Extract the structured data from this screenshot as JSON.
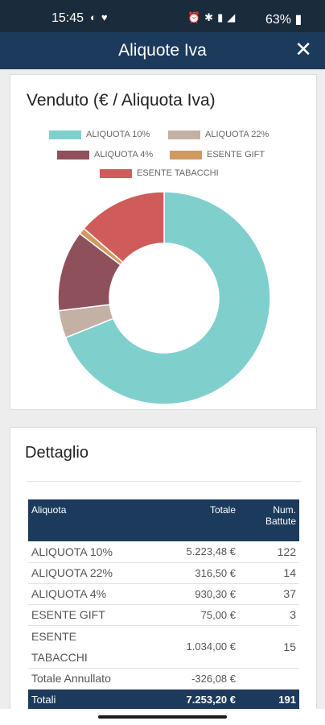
{
  "status": {
    "time": "15:45",
    "battery": "63%"
  },
  "header": {
    "title": "Aliquote Iva",
    "close_icon": "close-icon"
  },
  "chart_data": {
    "type": "pie",
    "donut": true,
    "title": "Venduto (€ / Aliquota Iva)",
    "legend_placement": "top",
    "categories": [
      "ALIQUOTA 10%",
      "ALIQUOTA 22%",
      "ALIQUOTA 4%",
      "ESENTE GIFT",
      "ESENTE TABACCHI"
    ],
    "values": [
      5223.48,
      316.5,
      930.3,
      75.0,
      1034.0
    ],
    "colors": [
      "#7fcfcd",
      "#c2b1a4",
      "#8e515c",
      "#cf9a60",
      "#cf5c5a"
    ]
  },
  "detail": {
    "title": "Dettaglio",
    "columns": {
      "aliquota": "Aliquota",
      "totale": "Totale",
      "num1": "Num.",
      "num2": "Battute"
    },
    "rows": [
      {
        "aliquota": "ALIQUOTA 10%",
        "totale": "5.223,48 €",
        "num": "122"
      },
      {
        "aliquota": "ALIQUOTA 22%",
        "totale": "316,50 €",
        "num": "14"
      },
      {
        "aliquota": "ALIQUOTA 4%",
        "totale": "930,30 €",
        "num": "37"
      },
      {
        "aliquota": "ESENTE GIFT",
        "totale": "75,00 €",
        "num": "3"
      },
      {
        "aliquota_l1": "ESENTE",
        "aliquota_l2": "TABACCHI",
        "totale": "1.034,00 €",
        "num": "15"
      }
    ],
    "annullato": {
      "label": "Totale Annullato",
      "totale": "-326,08 €"
    },
    "totali": {
      "label": "Totali",
      "totale": "7.253,20 €",
      "num": "191"
    }
  }
}
